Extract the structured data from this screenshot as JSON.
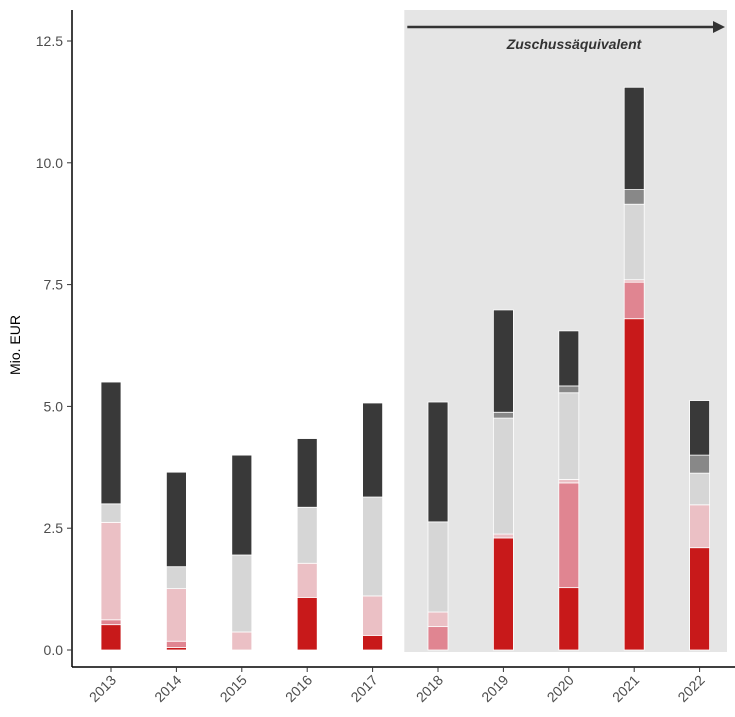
{
  "chart_data": {
    "type": "bar",
    "stacked": true,
    "ylabel": "Mio. EUR",
    "xlabel": "",
    "ylim": [
      0,
      12.5
    ],
    "yticks": [
      "0.0",
      "2.5",
      "5.0",
      "7.5",
      "10.0",
      "12.5"
    ],
    "categories": [
      "2013",
      "2014",
      "2015",
      "2016",
      "2017",
      "2018",
      "2019",
      "2020",
      "2021",
      "2022"
    ],
    "series": [
      {
        "color": "#c8191a",
        "values": [
          0.52,
          0.05,
          0.0,
          1.08,
          0.3,
          0.0,
          2.3,
          1.28,
          6.8,
          2.1
        ]
      },
      {
        "color": "#e08591",
        "values": [
          0.1,
          0.13,
          0.0,
          0.0,
          0.0,
          0.48,
          0.0,
          2.15,
          0.75,
          0.0
        ]
      },
      {
        "color": "#ebc0c5",
        "values": [
          2.0,
          1.08,
          0.37,
          0.7,
          0.81,
          0.3,
          0.08,
          0.07,
          0.05,
          0.88
        ]
      },
      {
        "color": "#d6d6d6",
        "values": [
          0.38,
          0.45,
          1.58,
          1.15,
          2.03,
          1.85,
          2.38,
          1.78,
          1.55,
          0.65
        ]
      },
      {
        "color": "#888888",
        "values": [
          0.0,
          0.0,
          0.0,
          0.0,
          0.0,
          0.0,
          0.12,
          0.14,
          0.3,
          0.37
        ]
      },
      {
        "color": "#393939",
        "values": [
          2.5,
          1.94,
          2.05,
          1.41,
          1.93,
          2.46,
          2.1,
          1.13,
          2.1,
          1.12
        ]
      }
    ],
    "highlight": {
      "from_category": "2018",
      "to_category": "2022",
      "label": "Zuschussäquivalent",
      "color": "#e5e5e5",
      "arrow": true
    }
  }
}
